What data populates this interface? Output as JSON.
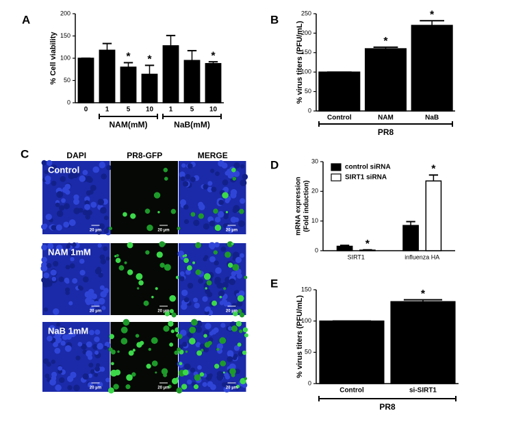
{
  "chart_data": [
    {
      "type": "bar",
      "label": "A",
      "ylabel": "% Cell viability",
      "categories": [
        "0",
        "1",
        "5",
        "10",
        "1",
        "5",
        "10"
      ],
      "values": [
        100,
        118,
        80,
        64,
        128,
        95,
        88
      ],
      "errors": [
        0,
        15,
        10,
        20,
        23,
        22,
        4
      ],
      "markers": [
        null,
        null,
        "*",
        "*",
        null,
        null,
        "*"
      ],
      "color": "#000000",
      "ylim": [
        0,
        200
      ],
      "yticks": [
        0,
        50,
        100,
        150,
        200
      ],
      "groups": [
        {
          "name": "NAM(mM)",
          "start": 1,
          "end": 3
        },
        {
          "name": "NaB(mM)",
          "start": 4,
          "end": 6
        }
      ]
    },
    {
      "type": "bar",
      "label": "B",
      "ylabel": "% virus titers (PFU/mL)",
      "categories": [
        "Control",
        "NAM",
        "NaB"
      ],
      "values": [
        100,
        160,
        220
      ],
      "errors": [
        0,
        4,
        12
      ],
      "markers": [
        null,
        "*",
        "*"
      ],
      "color": "#000000",
      "ylim": [
        0,
        250
      ],
      "yticks": [
        0,
        50,
        100,
        150,
        200,
        250
      ],
      "groups": [
        {
          "name": "PR8",
          "start": 0,
          "end": 2
        }
      ]
    },
    {
      "type": "grouped_bar",
      "label": "D",
      "ylabel": [
        "mRNA expression",
        "(Fold induction)"
      ],
      "categories": [
        "SIRT1",
        "influenza HA"
      ],
      "series": [
        {
          "name": "control siRNA",
          "color": "#000000",
          "values": [
            1.5,
            8.5
          ],
          "errors": [
            0.3,
            1.3
          ],
          "markers": [
            null,
            null
          ]
        },
        {
          "name": "SIRT1 siRNA",
          "color": "#ffffff",
          "values": [
            0.2,
            23.5
          ],
          "errors": [
            0.1,
            2
          ],
          "markers": [
            "*",
            "*"
          ]
        }
      ],
      "ylim": [
        0,
        30
      ],
      "yticks": [
        0,
        10,
        20,
        30
      ],
      "legend": "upper left"
    },
    {
      "type": "bar",
      "label": "E",
      "ylabel": "% virus titers (PFU/mL)",
      "categories": [
        "Control",
        "si-SIRT1"
      ],
      "values": [
        100,
        131
      ],
      "errors": [
        0,
        3
      ],
      "markers": [
        null,
        "*"
      ],
      "color": "#000000",
      "ylim": [
        0,
        150
      ],
      "yticks": [
        0,
        50,
        100,
        150
      ],
      "groups": [
        {
          "name": "PR8",
          "start": 0,
          "end": 1
        }
      ]
    }
  ],
  "panel_c": {
    "label": "C",
    "columns": [
      "DAPI",
      "PR8-GFP",
      "MERGE"
    ],
    "rows": [
      "Control",
      "NAM 1mM",
      "NaB 1mM"
    ],
    "scale_bar": "20 µm"
  }
}
